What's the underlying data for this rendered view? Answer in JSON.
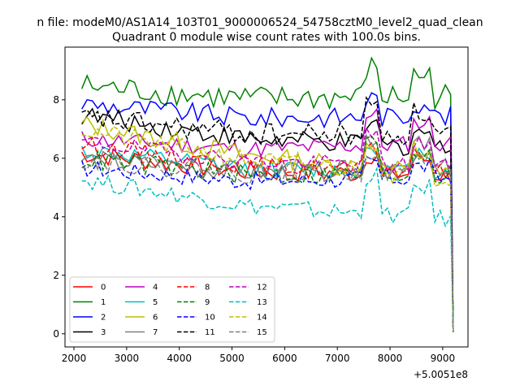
{
  "chart_data": {
    "type": "line",
    "suptitle": "n file: modeM0/AS1A14_103T01_9000006524_54758cztM0_level2_quad_clean",
    "title": "Quadrant 0 module wise count rates with 100.0s bins.",
    "x_offset_label": "+5.0051e8",
    "xlim": [
      1830,
      9480
    ],
    "ylim": [
      -0.45,
      9.8
    ],
    "x_ticks": [
      2000,
      3000,
      4000,
      5000,
      6000,
      7000,
      8000,
      9000
    ],
    "y_ticks": [
      0,
      2,
      4,
      6,
      8
    ],
    "x_tick_labels": [
      "2000",
      "3000",
      "4000",
      "5000",
      "6000",
      "7000",
      "8000",
      "9000"
    ],
    "y_tick_labels": [
      "0",
      "2",
      "4",
      "6",
      "8"
    ],
    "x_start": 2150,
    "x_step": 100,
    "legend_position": "lower-left",
    "series": [
      {
        "name": "0",
        "color": "#ff0000",
        "dash": "solid",
        "start": 6.2,
        "end": 5.4,
        "amplitude": 0.35,
        "tail_peak": 6.3,
        "drop_x": 9200,
        "drop_value": 0.1
      },
      {
        "name": "1",
        "color": "#008000",
        "dash": "solid",
        "start": 8.5,
        "end": 8.1,
        "amplitude": 0.45,
        "tail_peak": 9.3,
        "drop_x": 9200,
        "drop_value": 0.05
      },
      {
        "name": "2",
        "color": "#0000ff",
        "dash": "solid",
        "start": 7.9,
        "end": 7.4,
        "amplitude": 0.35,
        "tail_peak": 8.2,
        "drop_x": 9200,
        "drop_value": 0.1
      },
      {
        "name": "3",
        "color": "#000000",
        "dash": "solid",
        "start": 7.5,
        "end": 6.3,
        "amplitude": 0.35,
        "tail_peak": 7.3,
        "drop_x": 9200,
        "drop_value": 0.15
      },
      {
        "name": "4",
        "color": "#bf00bf",
        "dash": "solid",
        "start": 6.7,
        "end": 6.5,
        "amplitude": 0.3,
        "tail_peak": 7.7,
        "drop_x": 9200,
        "drop_value": 0.1
      },
      {
        "name": "5",
        "color": "#00bfbf",
        "dash": "solid",
        "start": 6.3,
        "end": 5.5,
        "amplitude": 0.3,
        "tail_peak": 6.6,
        "drop_x": 9200,
        "drop_value": 0.1
      },
      {
        "name": "6",
        "color": "#bfbf00",
        "dash": "solid",
        "start": 7.2,
        "end": 5.4,
        "amplitude": 0.35,
        "tail_peak": 6.7,
        "drop_x": 9200,
        "drop_value": 0.1
      },
      {
        "name": "7",
        "color": "#808080",
        "dash": "solid",
        "start": 6.0,
        "end": 5.6,
        "amplitude": 0.35,
        "tail_peak": 7.0,
        "drop_x": 9200,
        "drop_value": 0.1
      },
      {
        "name": "8",
        "color": "#ff0000",
        "dash": "dashed",
        "start": 6.5,
        "end": 5.5,
        "amplitude": 0.3,
        "tail_peak": 6.4,
        "drop_x": 9200,
        "drop_value": 0.1
      },
      {
        "name": "9",
        "color": "#008000",
        "dash": "dashed",
        "start": 6.0,
        "end": 5.4,
        "amplitude": 0.35,
        "tail_peak": 6.8,
        "drop_x": 9200,
        "drop_value": 0.1
      },
      {
        "name": "10",
        "color": "#0000ff",
        "dash": "dashed",
        "start": 5.7,
        "end": 5.3,
        "amplitude": 0.3,
        "tail_peak": 6.0,
        "drop_x": 9200,
        "drop_value": 0.1
      },
      {
        "name": "11",
        "color": "#000000",
        "dash": "dashed",
        "start": 7.4,
        "end": 6.8,
        "amplitude": 0.4,
        "tail_peak": 8.0,
        "drop_x": 9200,
        "drop_value": 0.1
      },
      {
        "name": "12",
        "color": "#bf00bf",
        "dash": "dashed",
        "start": 6.6,
        "end": 5.7,
        "amplitude": 0.3,
        "tail_peak": 7.0,
        "drop_x": 9200,
        "drop_value": 0.1
      },
      {
        "name": "13",
        "color": "#00bfbf",
        "dash": "dashed",
        "start": 5.3,
        "end": 3.9,
        "amplitude": 0.3,
        "tail_peak": 5.7,
        "drop_x": 9200,
        "drop_value": 0.1
      },
      {
        "name": "14",
        "color": "#bfbf00",
        "dash": "dashed",
        "start": 7.0,
        "end": 5.3,
        "amplitude": 0.35,
        "tail_peak": 6.9,
        "drop_x": 9200,
        "drop_value": 0.1
      },
      {
        "name": "15",
        "color": "#808080",
        "dash": "dashed",
        "start": 6.0,
        "end": 5.5,
        "amplitude": 0.35,
        "tail_peak": 6.5,
        "drop_x": 9200,
        "drop_value": 0.1
      }
    ]
  }
}
